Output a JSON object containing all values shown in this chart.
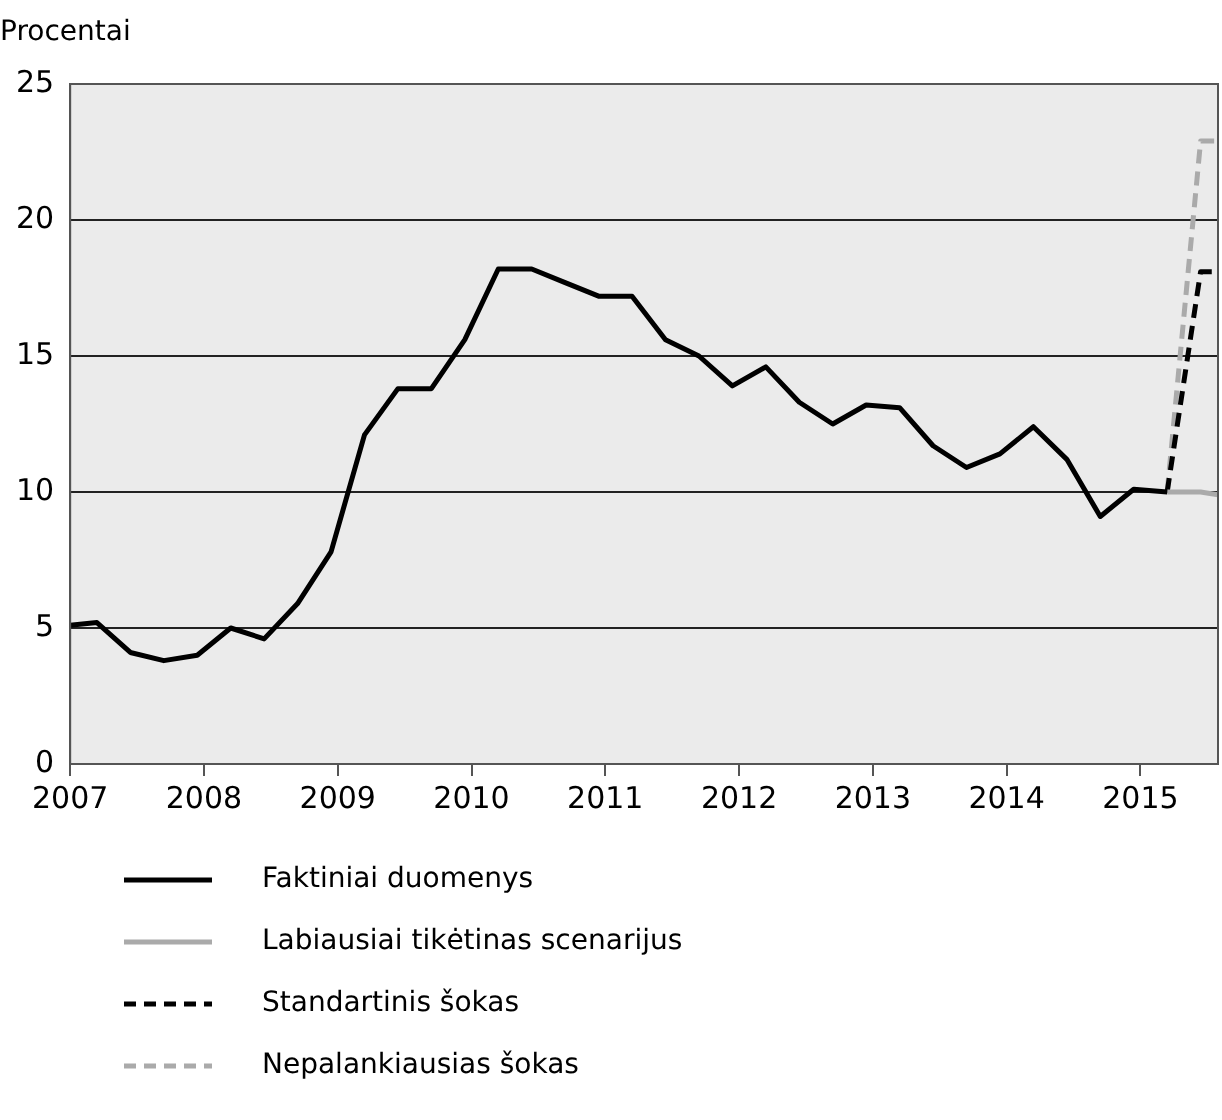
{
  "chart_data": {
    "type": "line",
    "ylabel": "Procentai",
    "xlim": [
      2007,
      2015.58
    ],
    "xticks": [
      2007,
      2008,
      2009,
      2010,
      2011,
      2012,
      2013,
      2014,
      2015
    ],
    "ylim": [
      0,
      25
    ],
    "yticks": [
      0,
      5,
      10,
      15,
      20,
      25
    ],
    "grid": "y",
    "legend": "bottom",
    "series": [
      {
        "name": "Faktiniai duomenys",
        "color": "#000000",
        "line_style": "solid",
        "x": [
          2007,
          2007.2,
          2007.45,
          2007.7,
          2007.95,
          2008.2,
          2008.45,
          2008.7,
          2008.95,
          2009.2,
          2009.45,
          2009.7,
          2009.95,
          2010.2,
          2010.45,
          2010.7,
          2010.95,
          2011.2,
          2011.45,
          2011.7,
          2011.95,
          2012.2,
          2012.45,
          2012.7,
          2012.95,
          2013.2,
          2013.45,
          2013.7,
          2013.95,
          2014.2,
          2014.45,
          2014.7,
          2014.95,
          2015.2
        ],
        "values": [
          5.1,
          5.2,
          4.1,
          3.8,
          4.0,
          5.0,
          4.6,
          5.9,
          7.8,
          12.1,
          13.8,
          13.8,
          15.6,
          18.2,
          18.2,
          17.7,
          17.2,
          17.2,
          15.6,
          15.0,
          13.9,
          14.6,
          13.3,
          12.5,
          13.2,
          13.1,
          11.7,
          10.9,
          11.4,
          12.4,
          11.2,
          9.1,
          10.1,
          10.0
        ]
      },
      {
        "name": "Labiausiai tikėtinas scenarijus",
        "color": "#aaaaaa",
        "line_style": "solid",
        "x": [
          2015.2,
          2015.45,
          2015.58
        ],
        "values": [
          10.0,
          10.0,
          9.9
        ]
      },
      {
        "name": "Standartinis šokas",
        "color": "#000000",
        "line_style": "dashed",
        "x": [
          2015.2,
          2015.45,
          2015.58
        ],
        "values": [
          10.0,
          18.1,
          18.1
        ]
      },
      {
        "name": "Nepalankiausias šokas",
        "color": "#aaaaaa",
        "line_style": "dashed",
        "x": [
          2015.2,
          2015.45,
          2015.58
        ],
        "values": [
          10.0,
          22.9,
          22.9
        ]
      }
    ]
  }
}
